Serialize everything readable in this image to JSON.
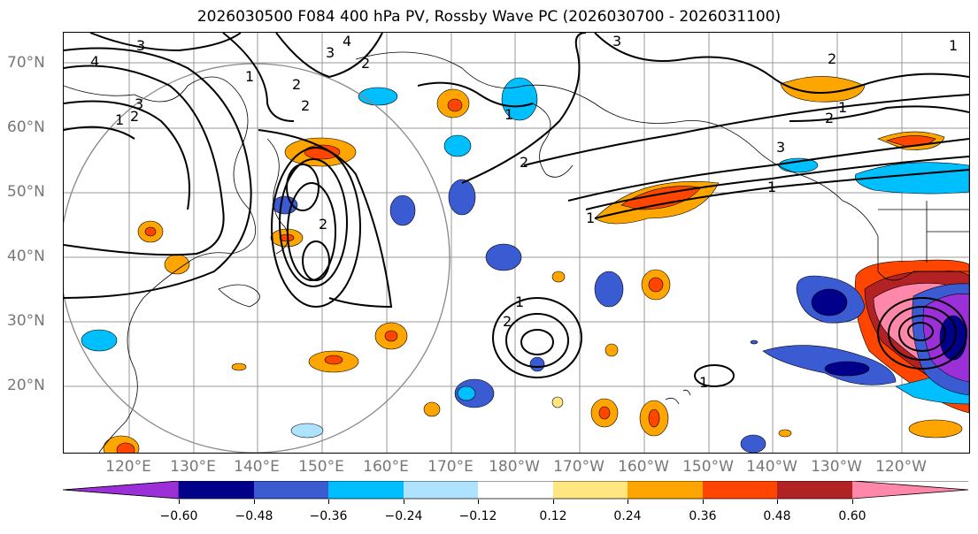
{
  "title": "2026030500 F084 400 hPa PV, Rossby Wave PC (2026030700 - 2026031100)",
  "latitude_labels": [
    "70°N",
    "60°N",
    "50°N",
    "40°N",
    "30°N",
    "20°N"
  ],
  "longitude_labels": [
    "120°E",
    "130°E",
    "140°E",
    "150°E",
    "160°E",
    "170°E",
    "180°W",
    "170°W",
    "160°W",
    "150°W",
    "140°W",
    "130°W",
    "120°W"
  ],
  "contour_labels": [
    "4",
    "3",
    "4",
    "3",
    "2",
    "1",
    "2",
    "3",
    "2",
    "1",
    "2",
    "3",
    "1",
    "2",
    "1",
    "2",
    "1",
    "3",
    "2",
    "1",
    "1",
    "2",
    "1",
    "1",
    "2"
  ],
  "colorbar": {
    "tick_labels": [
      "−0.60",
      "−0.48",
      "−0.36",
      "−0.24",
      "−0.12",
      "0.12",
      "0.24",
      "0.36",
      "0.48",
      "0.60"
    ],
    "colors": [
      "#9b30d9",
      "#00008b",
      "#3a5bd1",
      "#00bfff",
      "#aee3ff",
      "#ffffff",
      "#ffe680",
      "#ffa500",
      "#ff4500",
      "#b22222",
      "#ff88aa"
    ]
  }
}
